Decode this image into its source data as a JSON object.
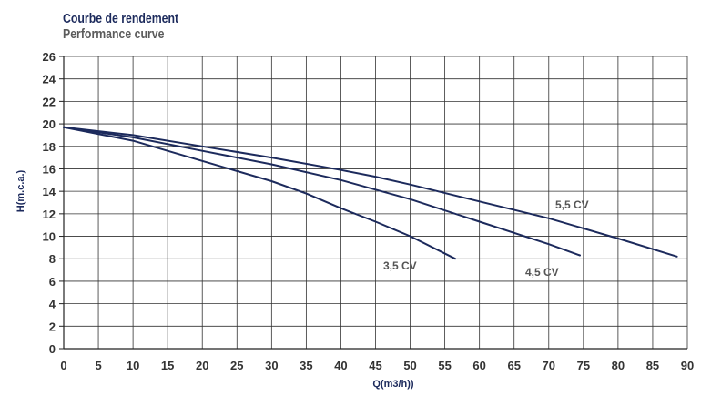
{
  "header": {
    "title": "Courbe de rendement",
    "subtitle": "Performance curve"
  },
  "chart_data": {
    "type": "line",
    "title": "Courbe de rendement",
    "subtitle": "Performance curve",
    "xlabel": "Q(m3/h))",
    "ylabel": "H(m.c.a.)",
    "xlim": [
      0,
      90
    ],
    "ylim": [
      0,
      26
    ],
    "xticks": [
      0,
      5,
      10,
      15,
      20,
      25,
      30,
      35,
      40,
      45,
      50,
      55,
      60,
      65,
      70,
      75,
      80,
      85,
      90
    ],
    "yticks": [
      0,
      2,
      4,
      6,
      8,
      10,
      12,
      14,
      16,
      18,
      20,
      22,
      24,
      26
    ],
    "grid": true,
    "line_color": "#1c2a5c",
    "series": [
      {
        "name": "3,5 CV",
        "x": [
          0,
          10,
          20,
          30,
          35,
          40,
          45,
          50,
          56.5
        ],
        "y": [
          19.7,
          18.5,
          16.7,
          14.9,
          13.8,
          12.5,
          11.3,
          10.0,
          8.0
        ]
      },
      {
        "name": "4,5 CV",
        "x": [
          0,
          10,
          20,
          30,
          40,
          50,
          60,
          70,
          74.5
        ],
        "y": [
          19.7,
          18.8,
          17.6,
          16.4,
          15.0,
          13.3,
          11.3,
          9.3,
          8.3
        ]
      },
      {
        "name": "5,5 CV",
        "x": [
          0,
          10,
          20,
          30,
          40,
          45,
          50,
          60,
          70,
          80,
          88.5
        ],
        "y": [
          19.7,
          19.0,
          18.0,
          17.0,
          15.9,
          15.3,
          14.6,
          13.1,
          11.6,
          9.8,
          8.2
        ]
      }
    ]
  }
}
